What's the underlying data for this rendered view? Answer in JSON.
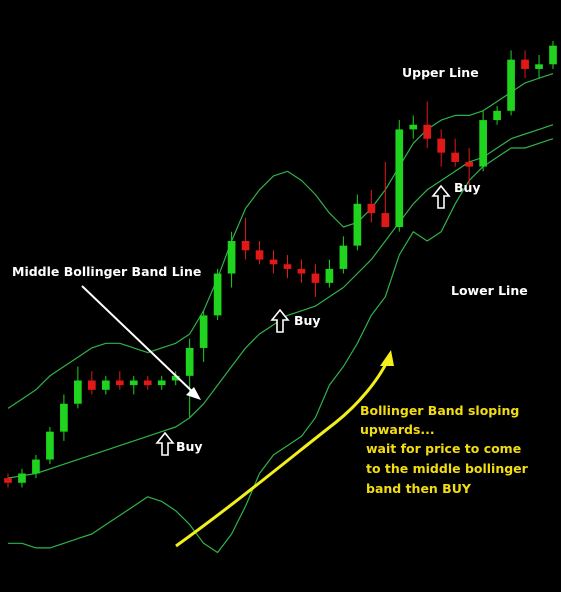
{
  "colors": {
    "background": "#000000",
    "band": "#2fb24a",
    "bull": "#1fd31f",
    "bear": "#e01818",
    "label": "#ffffff",
    "note": "#f2dc12",
    "arrow_main": "#f2ef1a"
  },
  "annotations": {
    "upper_line": "Upper Line",
    "lower_line": "Lower Line",
    "middle_line": "Middle Bollinger Band Line",
    "buy_1": "Buy",
    "buy_2": "Buy",
    "buy_3": "Buy",
    "note_1": "Bollinger Band sloping",
    "note_2": "upwards...",
    "note_3": "wait for price to come",
    "note_4": "to the middle bollinger",
    "note_5": "band then BUY"
  },
  "chart_data": {
    "type": "candlestick",
    "title": "",
    "xlabel": "",
    "ylabel": "",
    "grid": false,
    "legend": "none",
    "indicator": "Bollinger Bands",
    "ylim": [
      0,
      100
    ],
    "upper_band": [
      24,
      26,
      28,
      31,
      33,
      35,
      37,
      38,
      38,
      37,
      36,
      37,
      38,
      40,
      45,
      52,
      60,
      67,
      71,
      74,
      75,
      73,
      70,
      66,
      63,
      64,
      67,
      71,
      76,
      81,
      84,
      86,
      87,
      87,
      88,
      90,
      92,
      94,
      95,
      96
    ],
    "middle_band": [
      9,
      9.5,
      10,
      11,
      12,
      13,
      14,
      15,
      16,
      17,
      18,
      19,
      20,
      22,
      25,
      29,
      33,
      37,
      40,
      42,
      44,
      45,
      46,
      48,
      50,
      53,
      56,
      60,
      64,
      68,
      71,
      73,
      75,
      77,
      78,
      80,
      82,
      83,
      84,
      85
    ],
    "lower_band": [
      -5,
      -5,
      -6,
      -6,
      -5,
      -4,
      -3,
      -1,
      1,
      3,
      5,
      4,
      2,
      -1,
      -5,
      -7,
      -3,
      3,
      10,
      14,
      16,
      18,
      22,
      29,
      33,
      38,
      44,
      48,
      57,
      62,
      60,
      62,
      68,
      73,
      76,
      78,
      80,
      80,
      81,
      82
    ],
    "candles": [
      {
        "o": 9,
        "h": 10,
        "l": 7,
        "c": 8
      },
      {
        "o": 8,
        "h": 11,
        "l": 7,
        "c": 10
      },
      {
        "o": 10,
        "h": 14,
        "l": 9,
        "c": 13
      },
      {
        "o": 13,
        "h": 20,
        "l": 12,
        "c": 19
      },
      {
        "o": 19,
        "h": 27,
        "l": 17,
        "c": 25
      },
      {
        "o": 25,
        "h": 33,
        "l": 24,
        "c": 30
      },
      {
        "o": 30,
        "h": 32,
        "l": 27,
        "c": 28
      },
      {
        "o": 28,
        "h": 31,
        "l": 27,
        "c": 30
      },
      {
        "o": 30,
        "h": 32,
        "l": 28,
        "c": 29
      },
      {
        "o": 29,
        "h": 31,
        "l": 27,
        "c": 30
      },
      {
        "o": 30,
        "h": 31,
        "l": 28,
        "c": 29
      },
      {
        "o": 29,
        "h": 31,
        "l": 28,
        "c": 30
      },
      {
        "o": 30,
        "h": 32,
        "l": 29,
        "c": 31
      },
      {
        "o": 31,
        "h": 39,
        "l": 22,
        "c": 37
      },
      {
        "o": 37,
        "h": 45,
        "l": 34,
        "c": 44
      },
      {
        "o": 44,
        "h": 54,
        "l": 43,
        "c": 53
      },
      {
        "o": 53,
        "h": 62,
        "l": 50,
        "c": 60
      },
      {
        "o": 60,
        "h": 65,
        "l": 56,
        "c": 58
      },
      {
        "o": 58,
        "h": 60,
        "l": 55,
        "c": 56
      },
      {
        "o": 56,
        "h": 58,
        "l": 53,
        "c": 55
      },
      {
        "o": 55,
        "h": 57,
        "l": 52,
        "c": 54
      },
      {
        "o": 54,
        "h": 56,
        "l": 51,
        "c": 53
      },
      {
        "o": 53,
        "h": 55,
        "l": 48,
        "c": 51
      },
      {
        "o": 51,
        "h": 56,
        "l": 50,
        "c": 54
      },
      {
        "o": 54,
        "h": 61,
        "l": 53,
        "c": 59
      },
      {
        "o": 59,
        "h": 70,
        "l": 58,
        "c": 68
      },
      {
        "o": 68,
        "h": 71,
        "l": 64,
        "c": 66
      },
      {
        "o": 66,
        "h": 77,
        "l": 63,
        "c": 63
      },
      {
        "o": 63,
        "h": 86,
        "l": 62,
        "c": 84
      },
      {
        "o": 84,
        "h": 87,
        "l": 82,
        "c": 85
      },
      {
        "o": 85,
        "h": 90,
        "l": 80,
        "c": 82
      },
      {
        "o": 82,
        "h": 84,
        "l": 76,
        "c": 79
      },
      {
        "o": 79,
        "h": 82,
        "l": 76,
        "c": 77
      },
      {
        "o": 77,
        "h": 80,
        "l": 72,
        "c": 76
      },
      {
        "o": 76,
        "h": 88,
        "l": 75,
        "c": 86
      },
      {
        "o": 86,
        "h": 89,
        "l": 85,
        "c": 88
      },
      {
        "o": 88,
        "h": 101,
        "l": 87,
        "c": 99
      },
      {
        "o": 99,
        "h": 101,
        "l": 95,
        "c": 97
      },
      {
        "o": 97,
        "h": 100,
        "l": 95,
        "c": 98
      },
      {
        "o": 98,
        "h": 103,
        "l": 97,
        "c": 102
      }
    ]
  }
}
